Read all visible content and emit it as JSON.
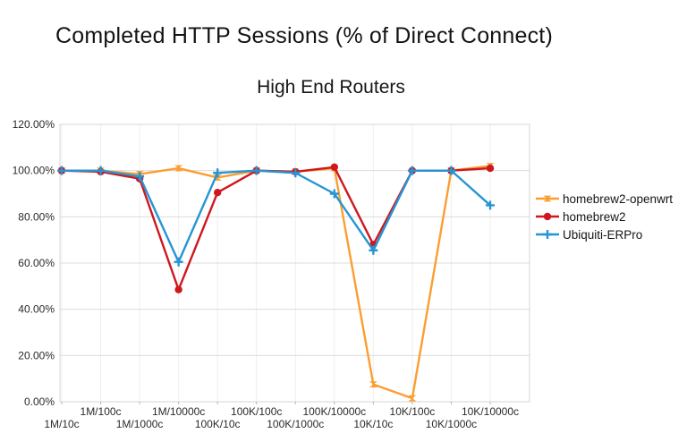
{
  "header": {
    "title": "Completed HTTP Sessions (% of Direct Connect)",
    "subtitle": "High End Routers"
  },
  "chart_data": {
    "type": "line",
    "title": "Completed HTTP Sessions (% of Direct Connect)",
    "subtitle": "High End Routers",
    "categories": [
      "1M/10c",
      "1M/100c",
      "1M/1000c",
      "1M/10000c",
      "100K/10c",
      "100K/100c",
      "100K/1000c",
      "100K/10000c",
      "10K/10c",
      "10K/100c",
      "10K/1000c",
      "10K/10000c"
    ],
    "series": [
      {
        "name": "homebrew2-openwrt",
        "color": "#FB9E32",
        "marker": "bowtie",
        "values": [
          100,
          100,
          98.5,
          101,
          97,
          100,
          99.5,
          101,
          7.5,
          1.5,
          100,
          102
        ]
      },
      {
        "name": "homebrew2",
        "color": "#CE181E",
        "marker": "circle",
        "values": [
          100,
          99.5,
          96.5,
          48.5,
          90.5,
          100,
          99.5,
          101.5,
          68,
          100,
          100,
          101
        ]
      },
      {
        "name": "Ubiquiti-ERPro",
        "color": "#2595D4",
        "marker": "plus",
        "values": [
          100,
          100,
          97.5,
          60.5,
          99,
          100,
          99,
          90,
          65.5,
          100,
          100,
          85
        ]
      }
    ],
    "y_axis": {
      "min": 0,
      "max": 120,
      "step": 20,
      "unit": "%"
    },
    "y_tick_labels": [
      "0.00%",
      "20.00%",
      "40.00%",
      "60.00%",
      "80.00%",
      "100.00%",
      "120.00%"
    ],
    "xlabel": "",
    "ylabel": "",
    "grid": {
      "horizontal": true,
      "vertical": true
    },
    "legend_position": "right"
  },
  "colors": {
    "grid_h": "#dcdcdc",
    "grid_v": "#efefef",
    "axis_line": "#c4c4c4",
    "plot_border": "#d6d6d6",
    "tick": "#b5b5b5",
    "axis_text": "#2b2b2b"
  }
}
